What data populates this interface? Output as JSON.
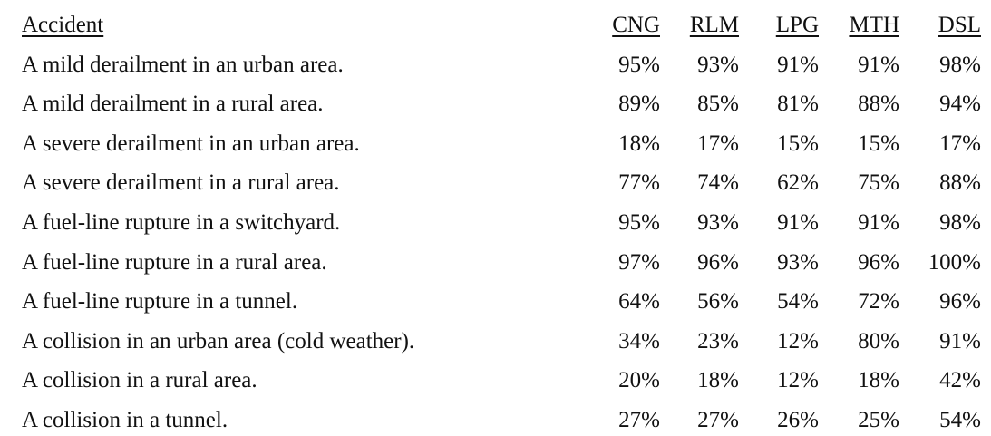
{
  "table": {
    "header": [
      "Accident",
      "CNG",
      "RLM",
      "LPG",
      "MTH",
      "DSL"
    ],
    "rows": [
      [
        "A mild derailment in an urban area.",
        "95%",
        "93%",
        "91%",
        "91%",
        "98%"
      ],
      [
        "A mild derailment in a rural area.",
        "89%",
        "85%",
        "81%",
        "88%",
        "94%"
      ],
      [
        "A severe derailment in an urban area.",
        "18%",
        "17%",
        "15%",
        "15%",
        "17%"
      ],
      [
        "A severe derailment in a rural area.",
        "77%",
        "74%",
        "62%",
        "75%",
        "88%"
      ],
      [
        "A fuel-line rupture in a switchyard.",
        "95%",
        "93%",
        "91%",
        "91%",
        "98%"
      ],
      [
        "A fuel-line rupture in a rural area.",
        "97%",
        "96%",
        "93%",
        "96%",
        "100%"
      ],
      [
        "A fuel-line rupture in a tunnel.",
        "64%",
        "56%",
        "54%",
        "72%",
        "96%"
      ],
      [
        "A collision in an urban area (cold weather).",
        "34%",
        "23%",
        "12%",
        "80%",
        "91%"
      ],
      [
        "A collision in a rural area.",
        "20%",
        "18%",
        "12%",
        "18%",
        "42%"
      ],
      [
        "A collision in a tunnel.",
        "27%",
        "27%",
        "26%",
        "25%",
        "54%"
      ]
    ]
  }
}
